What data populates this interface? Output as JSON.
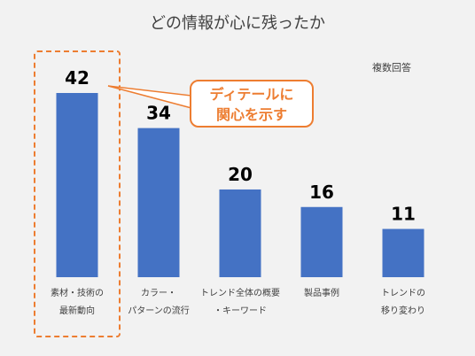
{
  "title": "どの情報が心に残ったか",
  "note": "複数回答",
  "callout": {
    "line1": "ディテールに",
    "line2": "関心を示す"
  },
  "colors": {
    "bar": "#4472c4",
    "accent": "#ed7d31",
    "text": "#404040",
    "background": "#f2f2f2"
  },
  "chart_data": {
    "type": "bar",
    "title": "どの情報が心に残ったか",
    "categories": [
      [
        "素材・技術の",
        "最新動向"
      ],
      [
        "カラー・",
        "パターンの流行"
      ],
      [
        "トレンド全体の概要",
        "・キーワード"
      ],
      [
        "製品事例"
      ],
      [
        "トレンドの",
        "移り変わり"
      ]
    ],
    "values": [
      42,
      34,
      20,
      16,
      11
    ],
    "ylim": [
      0,
      42
    ],
    "highlight_index": 0,
    "grid": false,
    "legend": "none"
  }
}
